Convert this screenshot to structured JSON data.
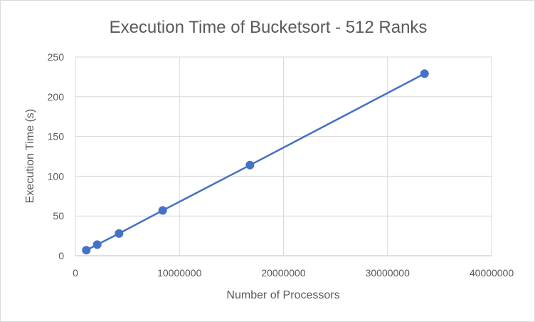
{
  "chart_data": {
    "type": "scatter",
    "mode": "lines+markers",
    "title": "Execution Time of Bucketsort - 512 Ranks",
    "xlabel": "Number of Processors",
    "ylabel": "Execution Time (s)",
    "xlim": [
      0,
      40000000
    ],
    "ylim": [
      0,
      250
    ],
    "xticks": [
      0,
      10000000,
      20000000,
      30000000,
      40000000
    ],
    "xtick_labels": [
      "0",
      "10000000",
      "20000000",
      "30000000",
      "40000000"
    ],
    "yticks": [
      0,
      50,
      100,
      150,
      200,
      250
    ],
    "ytick_labels": [
      "0",
      "50",
      "100",
      "150",
      "200",
      "250"
    ],
    "grid": true,
    "legend": "none",
    "series": [
      {
        "color": "#4472c4",
        "x": [
          1048576,
          2097152,
          4194304,
          8388608,
          16777216,
          33554432
        ],
        "y": [
          7,
          14,
          28,
          57,
          114,
          229
        ]
      }
    ]
  }
}
